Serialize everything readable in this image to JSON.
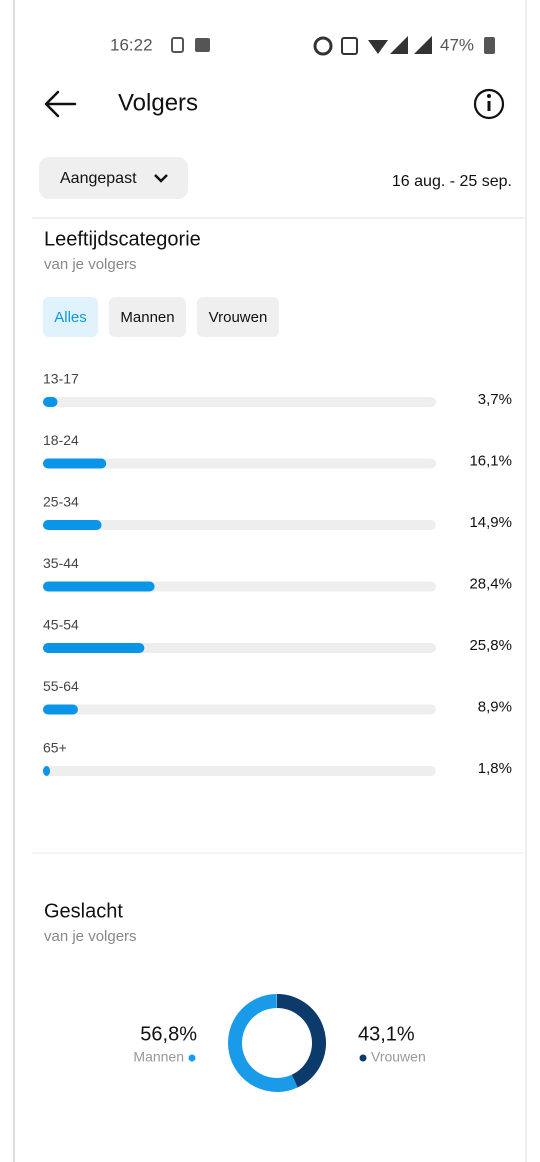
{
  "status_bar": {
    "time": "16:22",
    "battery": "47%"
  },
  "header": {
    "title": "Volgers"
  },
  "filter": {
    "period": "Aangepast",
    "range": "16 aug. - 25 sep."
  },
  "chart_data": [
    {
      "type": "bar",
      "title": "Leeftijdscategorie",
      "subtitle": "van je volgers",
      "tabs": [
        "Alles",
        "Mannen",
        "Vrouwen"
      ],
      "active_tab": 0,
      "categories": [
        "13-17",
        "18-24",
        "25-34",
        "35-44",
        "45-54",
        "55-64",
        "65+"
      ],
      "values": [
        3.7,
        16.1,
        14.9,
        28.4,
        25.8,
        8.9,
        1.8
      ],
      "value_labels": [
        "3,7%",
        "16,1%",
        "14,9%",
        "28,4%",
        "25,8%",
        "8,9%",
        "1,8%"
      ],
      "color": "#0a95e8",
      "track_color": "#eeeeee",
      "xlim": [
        0,
        100
      ]
    },
    {
      "type": "pie",
      "title": "Geslacht",
      "subtitle": "van je volgers",
      "categories": [
        "Mannen",
        "Vrouwen"
      ],
      "values": [
        56.8,
        43.1
      ],
      "value_labels": [
        "56,8%",
        "43,1%"
      ],
      "colors": [
        "#1a9bea",
        "#0b3a6b"
      ]
    }
  ]
}
